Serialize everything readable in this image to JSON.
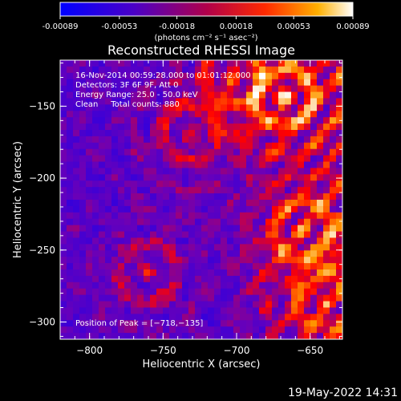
{
  "colorbar": {
    "ticks": [
      "-0.00089",
      "-0.00053",
      "-0.00018",
      "0.00018",
      "0.00053",
      "0.00089"
    ],
    "values": [
      -0.00089,
      -0.00053,
      -0.00018,
      0.00018,
      0.00053,
      0.00089
    ],
    "unit_label": "(photons cm⁻² s⁻¹ asec⁻²)"
  },
  "chart_data": {
    "type": "heatmap",
    "title": "Reconstructed RHESSI Image",
    "xlabel": "Heliocentric X (arcsec)",
    "ylabel": "Heliocentric Y (arcsec)",
    "xlim": [
      -820,
      -628
    ],
    "ylim": [
      -312,
      -118
    ],
    "xticks": [
      -800,
      -750,
      -700,
      -650
    ],
    "xtick_labels": [
      "−800",
      "−750",
      "−700",
      "−650"
    ],
    "yticks": [
      -300,
      -250,
      -200,
      -150
    ],
    "ytick_labels": [
      "−300",
      "−250",
      "−200",
      "−150"
    ],
    "value_range": [
      -0.00089,
      0.00089
    ],
    "colormap": [
      "#0000ff",
      "#6a00b8",
      "#ff0000",
      "#ff9a00",
      "#ffffff"
    ],
    "peak_position": [
      -718,
      -135
    ]
  },
  "annotations": {
    "line1": "16-Nov-2014 00:59:28.000 to 01:01:12.000",
    "line2": "Detectors: 3F 6F 9F, Att 0",
    "line3": "Energy Range: 25.0 - 50.0 keV",
    "line4": "Clean     Total counts: 880",
    "peak": "Position of Peak = [−718,−135]"
  },
  "footer": {
    "date": "19-May-2022 14:31"
  }
}
